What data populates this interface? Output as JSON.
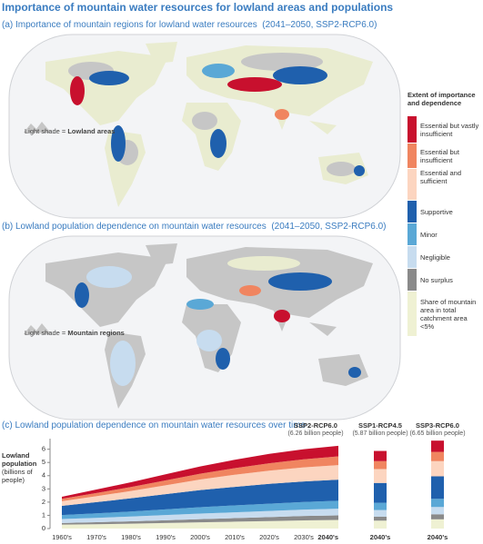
{
  "title": "Importance of mountain water resources for lowland areas and populations",
  "panel_a": {
    "title": "(a) Importance of mountain regions for lowland water resources",
    "period": "(2041–2050, SSP2-RCP6.0)",
    "note": "Light shade =",
    "note_emphasis": "Lowland areas"
  },
  "panel_b": {
    "title": "(b) Lowland population dependence on mountain water resources",
    "period": "(2041–2050, SSP2-RCP6.0)",
    "note": "Light shade =",
    "note_emphasis": "Mountain regions"
  },
  "legend": {
    "title": "Extent of importance and dependence"
  },
  "chart_data": [
    {
      "type": "area",
      "title": "(c) Lowland population dependence on mountain water resources over time",
      "y_label": "Lowland population",
      "y_unit": "(billions of people)",
      "scenario": "SSP2-RCP6.0",
      "scenario_note": "(6.26 billion people)",
      "categories": [
        "1960's",
        "1970's",
        "1980's",
        "1990's",
        "2000's",
        "2010's",
        "2020's",
        "2030's",
        "2040's"
      ],
      "ylim": [
        0,
        6.8
      ],
      "yticks": [
        0,
        1,
        2,
        3,
        4,
        5,
        6
      ],
      "series": [
        {
          "name": "Share of mountain area in total catchment area <5%",
          "color": "#eff1d3",
          "values": [
            0.3,
            0.33,
            0.37,
            0.42,
            0.47,
            0.52,
            0.57,
            0.62,
            0.65
          ]
        },
        {
          "name": "No surplus",
          "color": "#8a8a8a",
          "values": [
            0.12,
            0.15,
            0.18,
            0.21,
            0.24,
            0.27,
            0.3,
            0.33,
            0.35
          ]
        },
        {
          "name": "Negligible",
          "color": "#c7dcef",
          "values": [
            0.3,
            0.33,
            0.36,
            0.39,
            0.42,
            0.44,
            0.46,
            0.48,
            0.5
          ]
        },
        {
          "name": "Minor",
          "color": "#5aa8d6",
          "values": [
            0.3,
            0.34,
            0.38,
            0.43,
            0.48,
            0.52,
            0.55,
            0.58,
            0.6
          ]
        },
        {
          "name": "Supportive",
          "color": "#1f60ad",
          "values": [
            0.7,
            0.85,
            1.0,
            1.15,
            1.3,
            1.4,
            1.5,
            1.55,
            1.6
          ]
        },
        {
          "name": "Essential and sufficient",
          "color": "#fcd5c0",
          "values": [
            0.35,
            0.45,
            0.55,
            0.67,
            0.8,
            0.92,
            1.0,
            1.07,
            1.1
          ]
        },
        {
          "name": "Essential but insufficient",
          "color": "#f08560",
          "values": [
            0.18,
            0.24,
            0.3,
            0.37,
            0.44,
            0.5,
            0.56,
            0.61,
            0.66
          ]
        },
        {
          "name": "Essential but vastly insufficient",
          "color": "#c8102e",
          "values": [
            0.15,
            0.26,
            0.36,
            0.46,
            0.55,
            0.63,
            0.71,
            0.76,
            0.8
          ]
        }
      ]
    },
    {
      "type": "bar",
      "categories": [
        "SSP1-RCP4.5",
        "SSP3-RCP6.0"
      ],
      "notes": [
        "(5.87 billion people)",
        "(6.65 billion people)"
      ],
      "x_labels": [
        "2040's",
        "2040's"
      ],
      "ylim": [
        0,
        6.8
      ],
      "series": [
        {
          "color": "#eff1d3",
          "values": [
            0.6,
            0.7
          ]
        },
        {
          "color": "#8a8a8a",
          "values": [
            0.3,
            0.38
          ]
        },
        {
          "color": "#c7dcef",
          "values": [
            0.5,
            0.55
          ]
        },
        {
          "color": "#5aa8d6",
          "values": [
            0.55,
            0.62
          ]
        },
        {
          "color": "#1f60ad",
          "values": [
            1.5,
            1.7
          ]
        },
        {
          "color": "#fcd5c0",
          "values": [
            1.05,
            1.15
          ]
        },
        {
          "color": "#f08560",
          "values": [
            0.6,
            0.7
          ]
        },
        {
          "color": "#c8102e",
          "values": [
            0.77,
            0.85
          ]
        }
      ]
    }
  ]
}
